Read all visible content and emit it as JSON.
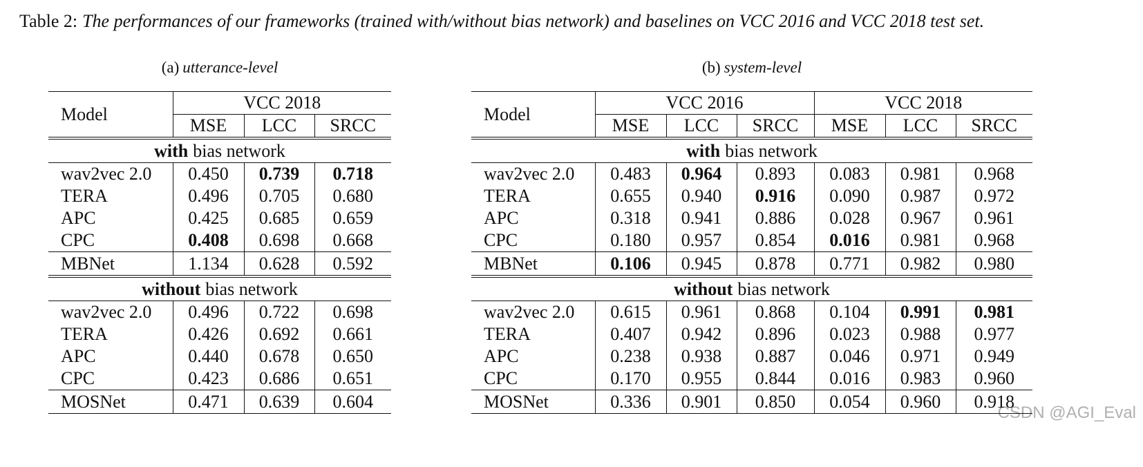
{
  "caption": {
    "label": "Table 2:",
    "text": "The performances of our frameworks (trained with/without bias network) and baselines on VCC 2016 and VCC 2018 test set."
  },
  "tables": [
    {
      "subcaption": {
        "label": "(a)",
        "text": "utterance-level"
      },
      "header": {
        "model": "Model",
        "groups": [
          {
            "name": "VCC 2018",
            "columns": [
              "MSE",
              "LCC",
              "SRCC"
            ]
          }
        ]
      },
      "sections": [
        {
          "title_bold": "with",
          "title_rest": "bias network",
          "rows": [
            {
              "cells": [
                "wav2vec 2.0",
                "0.450",
                "0.739",
                "0.718"
              ],
              "bold": [
                2,
                3
              ]
            },
            {
              "cells": [
                "TERA",
                "0.496",
                "0.705",
                "0.680"
              ],
              "bold": []
            },
            {
              "cells": [
                "APC",
                "0.425",
                "0.685",
                "0.659"
              ],
              "bold": []
            },
            {
              "cells": [
                "CPC",
                "0.408",
                "0.698",
                "0.668"
              ],
              "bold": [
                1
              ]
            }
          ],
          "baseline": {
            "cells": [
              "MBNet",
              "1.134",
              "0.628",
              "0.592"
            ],
            "bold": []
          }
        },
        {
          "title_bold": "without",
          "title_rest": "bias network",
          "rows": [
            {
              "cells": [
                "wav2vec 2.0",
                "0.496",
                "0.722",
                "0.698"
              ],
              "bold": []
            },
            {
              "cells": [
                "TERA",
                "0.426",
                "0.692",
                "0.661"
              ],
              "bold": []
            },
            {
              "cells": [
                "APC",
                "0.440",
                "0.678",
                "0.650"
              ],
              "bold": []
            },
            {
              "cells": [
                "CPC",
                "0.423",
                "0.686",
                "0.651"
              ],
              "bold": []
            }
          ],
          "baseline": {
            "cells": [
              "MOSNet",
              "0.471",
              "0.639",
              "0.604"
            ],
            "bold": []
          }
        }
      ]
    },
    {
      "subcaption": {
        "label": "(b)",
        "text": "system-level"
      },
      "header": {
        "model": "Model",
        "groups": [
          {
            "name": "VCC 2016",
            "columns": [
              "MSE",
              "LCC",
              "SRCC"
            ]
          },
          {
            "name": "VCC 2018",
            "columns": [
              "MSE",
              "LCC",
              "SRCC"
            ]
          }
        ]
      },
      "sections": [
        {
          "title_bold": "with",
          "title_rest": "bias network",
          "rows": [
            {
              "cells": [
                "wav2vec 2.0",
                "0.483",
                "0.964",
                "0.893",
                "0.083",
                "0.981",
                "0.968"
              ],
              "bold": [
                2
              ]
            },
            {
              "cells": [
                "TERA",
                "0.655",
                "0.940",
                "0.916",
                "0.090",
                "0.987",
                "0.972"
              ],
              "bold": [
                3
              ]
            },
            {
              "cells": [
                "APC",
                "0.318",
                "0.941",
                "0.886",
                "0.028",
                "0.967",
                "0.961"
              ],
              "bold": []
            },
            {
              "cells": [
                "CPC",
                "0.180",
                "0.957",
                "0.854",
                "0.016",
                "0.981",
                "0.968"
              ],
              "bold": [
                4
              ]
            }
          ],
          "baseline": {
            "cells": [
              "MBNet",
              "0.106",
              "0.945",
              "0.878",
              "0.771",
              "0.982",
              "0.980"
            ],
            "bold": [
              1
            ]
          }
        },
        {
          "title_bold": "without",
          "title_rest": "bias network",
          "rows": [
            {
              "cells": [
                "wav2vec 2.0",
                "0.615",
                "0.961",
                "0.868",
                "0.104",
                "0.991",
                "0.981"
              ],
              "bold": [
                5,
                6
              ]
            },
            {
              "cells": [
                "TERA",
                "0.407",
                "0.942",
                "0.896",
                "0.023",
                "0.988",
                "0.977"
              ],
              "bold": []
            },
            {
              "cells": [
                "APC",
                "0.238",
                "0.938",
                "0.887",
                "0.046",
                "0.971",
                "0.949"
              ],
              "bold": []
            },
            {
              "cells": [
                "CPC",
                "0.170",
                "0.955",
                "0.844",
                "0.016",
                "0.983",
                "0.960"
              ],
              "bold": []
            }
          ],
          "baseline": {
            "cells": [
              "MOSNet",
              "0.336",
              "0.901",
              "0.850",
              "0.054",
              "0.960",
              "0.918"
            ],
            "bold": []
          }
        }
      ]
    }
  ],
  "watermark": "CSDN @AGI_Eval"
}
